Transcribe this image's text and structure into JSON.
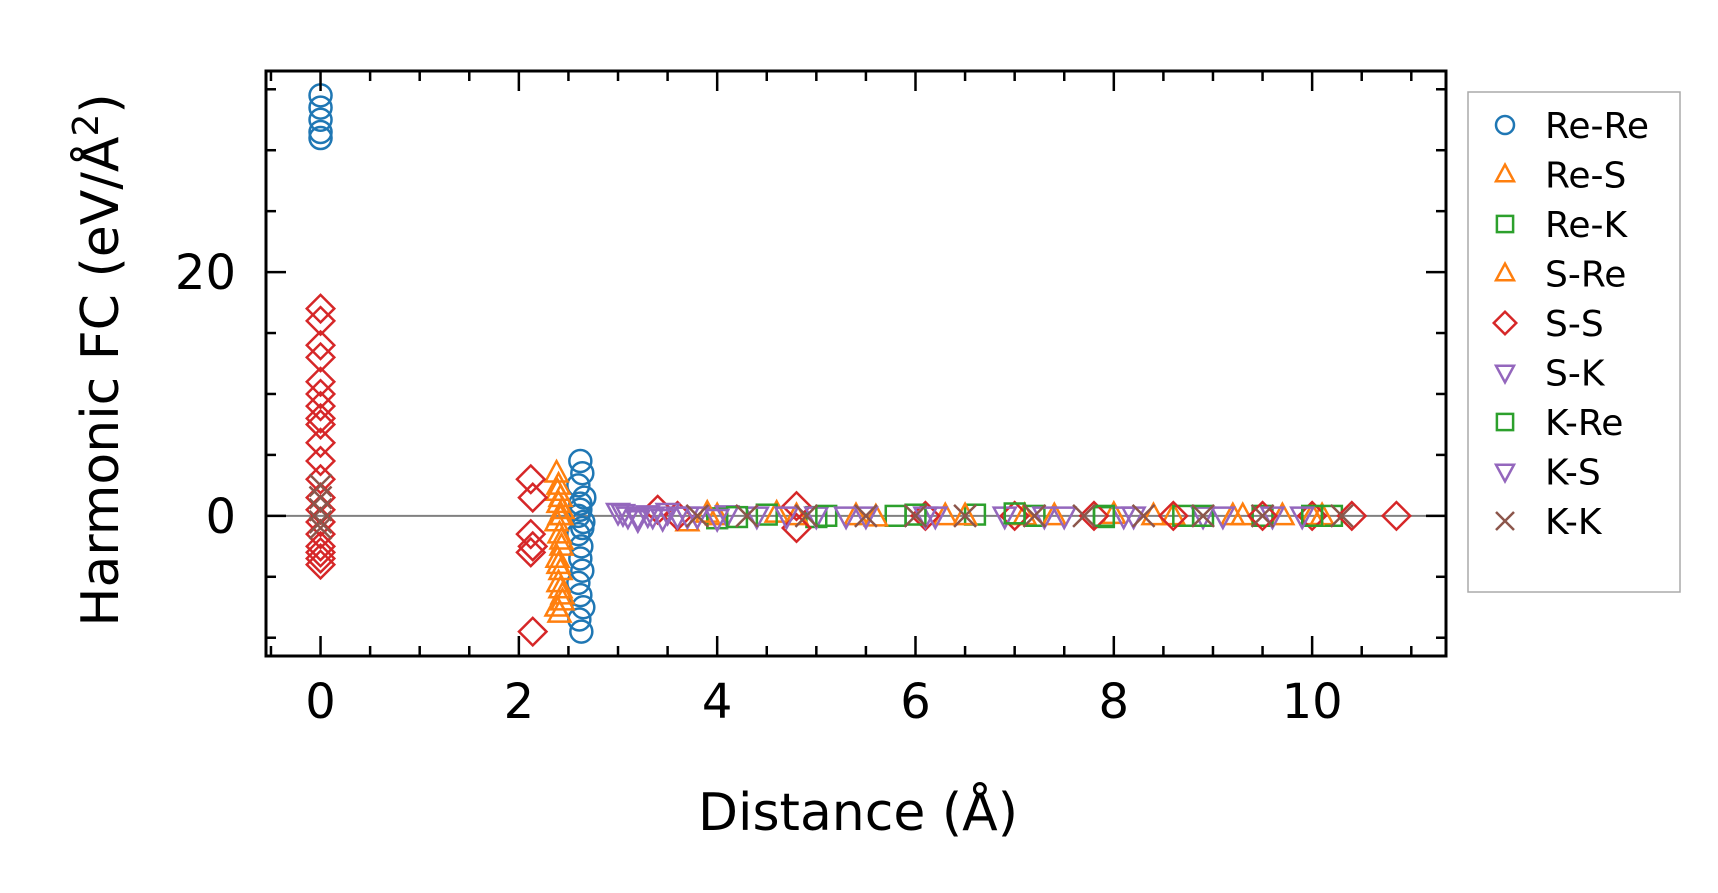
{
  "chart_data": {
    "type": "scatter",
    "xlabel": "Distance (Å)",
    "ylabel_main": "Harmonic FC (eV/Å",
    "ylabel_sup": "2",
    "ylabel_close": ")",
    "xlim": [
      -0.55,
      11.35
    ],
    "ylim": [
      -11.5,
      36.5
    ],
    "xticks": [
      0,
      2,
      4,
      6,
      8,
      10
    ],
    "xtick_labels": [
      "0",
      "2",
      "4",
      "6",
      "8",
      "10"
    ],
    "yticks": [
      0,
      20
    ],
    "ytick_labels": [
      "0",
      "20"
    ],
    "x_minor_step": 0.5,
    "y_minor_step": 5,
    "zero_line": true,
    "grid": false,
    "legend_placement": "outside-right",
    "series": [
      {
        "name": "Re-Re",
        "marker": "circle",
        "color": "#1f77b4",
        "x": [
          0,
          0,
          0,
          0,
          0,
          2.62,
          2.64,
          2.6,
          2.66,
          2.62,
          2.65,
          2.6,
          2.63,
          2.62,
          2.64,
          2.6,
          2.62,
          2.65,
          2.61,
          2.63,
          2.6,
          2.62,
          2.64
        ],
        "y": [
          34.5,
          33.5,
          32.5,
          31.5,
          31,
          4.5,
          3.5,
          2.5,
          1.5,
          0.5,
          -0.5,
          -1.5,
          -2.5,
          -3.5,
          -4.5,
          -5.5,
          -6.5,
          -7.5,
          -8.5,
          -9.5,
          0,
          1,
          -1
        ]
      },
      {
        "name": "Re-S",
        "marker": "triangle-up",
        "color": "#ff7f0e",
        "x": [
          2.38,
          2.4,
          2.42,
          2.44,
          2.38,
          2.41,
          2.43,
          2.39,
          2.42,
          2.4,
          2.44,
          2.38,
          2.41,
          2.43,
          2.4,
          3.7,
          4.0,
          4.6,
          5.4,
          6.3,
          7.1,
          8.0,
          8.6,
          9.3,
          9.7,
          10.1
        ],
        "y": [
          3.5,
          2.5,
          1.5,
          0.5,
          -0.5,
          -1.5,
          -2.5,
          -3.5,
          -4.5,
          -5.5,
          -6.5,
          -7.5,
          -8,
          0,
          1,
          -0.5,
          0,
          0.2,
          0,
          0,
          0,
          0.1,
          0,
          0,
          0,
          0
        ]
      },
      {
        "name": "Re-K",
        "marker": "square",
        "color": "#2ca02c",
        "x": [
          4.0,
          4.5,
          5.0,
          5.8,
          6.6,
          7.2,
          7.9,
          8.7,
          9.5,
          10.2
        ],
        "y": [
          -0.2,
          0.1,
          -0.1,
          0,
          0.1,
          0,
          -0.1,
          0,
          0,
          0
        ]
      },
      {
        "name": "S-Re",
        "marker": "triangle-up",
        "color": "#ff7f0e",
        "x": [
          2.39,
          2.41,
          2.43,
          2.4,
          2.42,
          2.44,
          3.9,
          4.8,
          5.6,
          6.5,
          7.4,
          8.4,
          9.2,
          10.0
        ],
        "y": [
          2,
          0,
          -2,
          -4,
          -6,
          -7,
          0.2,
          0,
          -0.1,
          0,
          0,
          0,
          0,
          0
        ]
      },
      {
        "name": "S-S",
        "marker": "diamond",
        "color": "#d62728",
        "x": [
          0,
          0,
          0,
          0,
          0,
          0,
          0,
          0,
          0,
          0,
          0,
          0,
          0,
          0,
          0,
          0,
          0,
          0,
          0,
          0,
          2.12,
          2.14,
          2.12,
          2.14,
          2.12,
          2.14,
          3.4,
          3.6,
          4.8,
          4.8,
          6.1,
          7.0,
          7.8,
          8.6,
          9.5,
          10.0,
          10.4,
          10.85
        ],
        "y": [
          17,
          16,
          14,
          13,
          11,
          10,
          9,
          8,
          7.5,
          6,
          4.5,
          3,
          1.5,
          0.5,
          -0.5,
          -1.5,
          -2.5,
          -3,
          -3.5,
          -4,
          3,
          1.5,
          -1.5,
          -2.5,
          -3,
          -9.5,
          0.5,
          0,
          0.8,
          -1,
          0,
          0,
          0,
          0,
          0,
          0,
          0,
          0
        ]
      },
      {
        "name": "S-K",
        "marker": "triangle-down",
        "color": "#9467bd",
        "x": [
          3.0,
          3.1,
          3.2,
          3.3,
          3.45,
          3.6,
          3.8,
          4.1,
          4.4,
          5.0,
          5.5,
          6.2,
          6.9,
          7.5,
          8.1,
          8.9,
          9.6
        ],
        "y": [
          0.3,
          0,
          -0.3,
          0.1,
          -0.2,
          0,
          0,
          0.1,
          0,
          0,
          0,
          0,
          0,
          0,
          0,
          0,
          0
        ]
      },
      {
        "name": "K-Re",
        "marker": "square",
        "color": "#2ca02c",
        "x": [
          4.2,
          5.1,
          6.0,
          7.0,
          7.9,
          8.9,
          10.0
        ],
        "y": [
          -0.1,
          0,
          0.1,
          0.2,
          0,
          0,
          0
        ]
      },
      {
        "name": "K-S",
        "marker": "triangle-down",
        "color": "#9467bd",
        "x": [
          3.05,
          3.2,
          3.35,
          3.5,
          3.7,
          4.0,
          4.7,
          5.3,
          6.1,
          7.3,
          8.2,
          9.1,
          9.9
        ],
        "y": [
          0.2,
          -0.1,
          0,
          0.3,
          0,
          -0.2,
          0,
          0,
          0,
          0,
          0,
          0,
          0
        ]
      },
      {
        "name": "K-K",
        "marker": "x",
        "color": "#8c564b",
        "x": [
          0,
          0,
          0,
          0,
          0,
          3.8,
          4.3,
          4.9,
          5.5,
          6.0,
          6.5,
          7.2,
          7.7,
          8.3,
          8.9,
          9.5,
          10.3
        ],
        "y": [
          2.5,
          1.5,
          0.5,
          -0.5,
          -1,
          0,
          0,
          0,
          0,
          0,
          0,
          0,
          0,
          0,
          0,
          0,
          0
        ]
      }
    ]
  }
}
